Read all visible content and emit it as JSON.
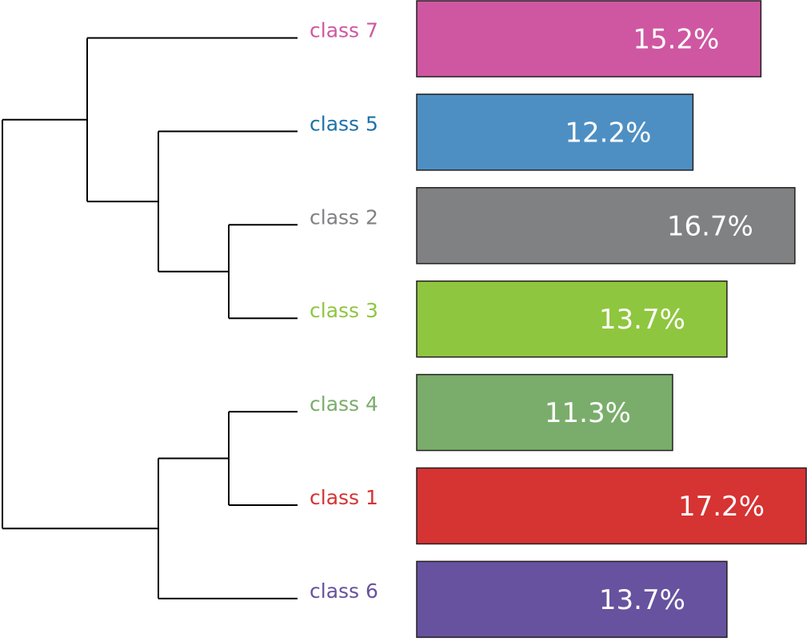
{
  "chart_data": {
    "type": "bar",
    "orientation": "horizontal",
    "title": "",
    "xlabel": "",
    "ylabel": "",
    "xlim": [
      0,
      17.2
    ],
    "grid": false,
    "dendrogram": "left",
    "categories": [
      "class 7",
      "class 5",
      "class 2",
      "class 3",
      "class 4",
      "class 1",
      "class 6"
    ],
    "values": [
      15.2,
      12.2,
      16.7,
      13.7,
      11.3,
      17.2,
      13.7
    ],
    "value_labels": [
      "15.2%",
      "12.2%",
      "16.7%",
      "13.7%",
      "11.3%",
      "17.2%",
      "13.7%"
    ],
    "colors": [
      "#cf57a1",
      "#4e8fc3",
      "#808183",
      "#8fc63f",
      "#7aad6b",
      "#d63333",
      "#67529f"
    ],
    "label_colors": [
      "#cf57a1",
      "#1e72a8",
      "#808183",
      "#8fc63f",
      "#7aad6b",
      "#d63333",
      "#67529f"
    ]
  }
}
